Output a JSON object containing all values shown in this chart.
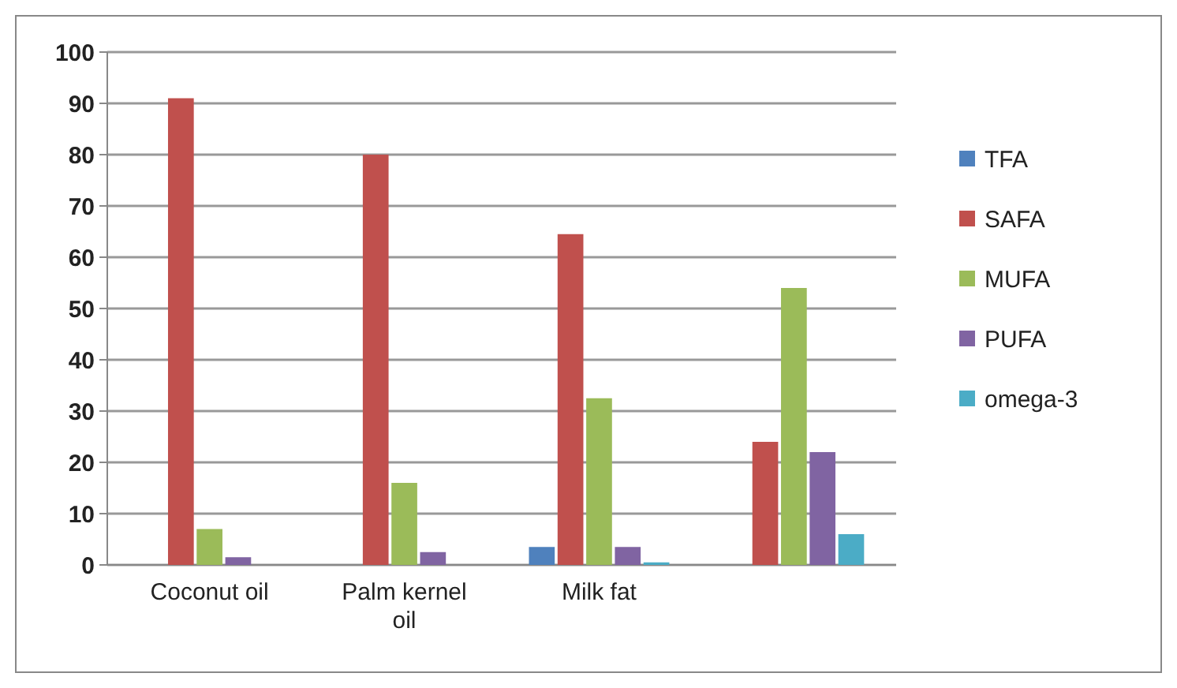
{
  "chart_data": {
    "type": "bar",
    "categories": [
      "Coconut oil",
      "Palm kernel oil",
      "Milk fat",
      null
    ],
    "series": [
      {
        "name": "TFA",
        "color": "#4f81bd",
        "values": [
          0,
          0,
          3.5,
          0
        ]
      },
      {
        "name": "SAFA",
        "color": "#c0504d",
        "values": [
          91,
          80,
          64.5,
          24
        ]
      },
      {
        "name": "MUFA",
        "color": "#9bbb59",
        "values": [
          7,
          16,
          32.5,
          54
        ]
      },
      {
        "name": "PUFA",
        "color": "#8064a2",
        "values": [
          1.5,
          2.5,
          3.5,
          22
        ]
      },
      {
        "name": "omega-3",
        "color": "#4bacc6",
        "values": [
          0,
          0,
          0.5,
          6
        ]
      }
    ],
    "ylim": [
      0,
      100
    ],
    "yticks": [
      0,
      10,
      20,
      30,
      40,
      50,
      60,
      70,
      80,
      90,
      100
    ],
    "grid": "y",
    "legend": "right"
  }
}
